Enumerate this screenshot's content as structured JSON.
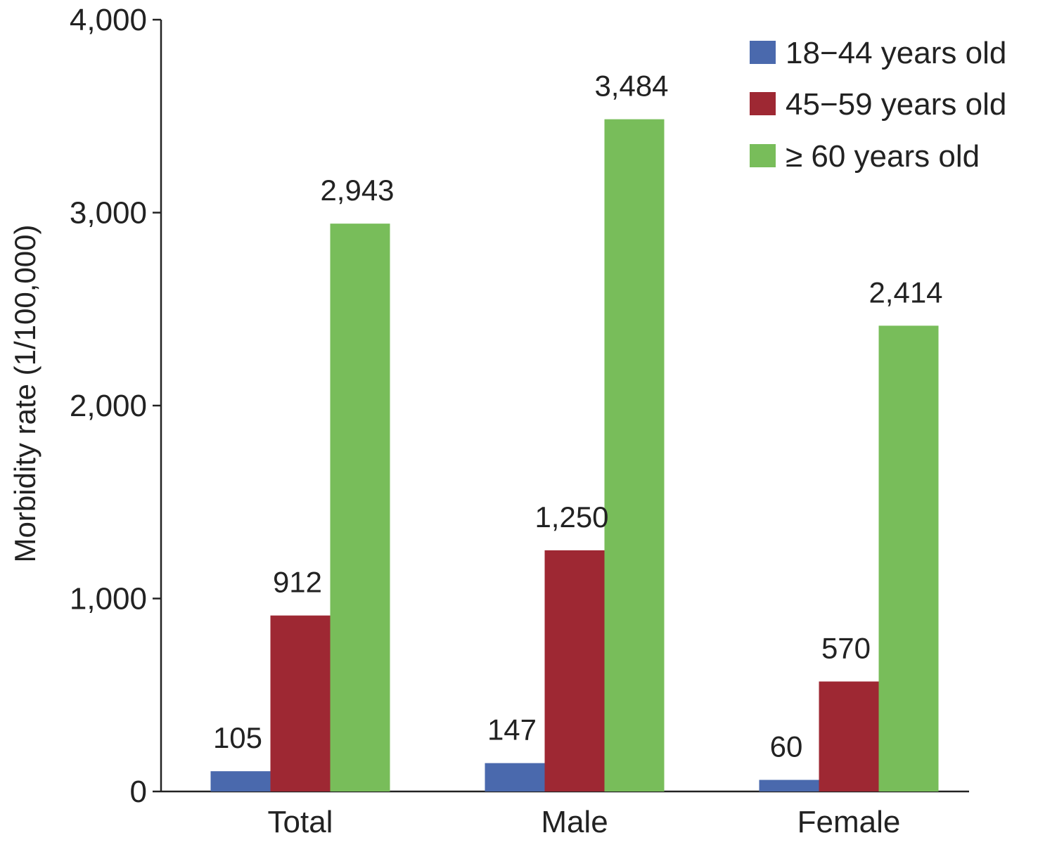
{
  "chart_data": {
    "type": "bar",
    "title": "",
    "xlabel": "",
    "ylabel": "Morbidity rate (1/100,000)",
    "ylim": [
      0,
      4000
    ],
    "yticks": [
      0,
      1000,
      2000,
      3000,
      4000
    ],
    "ytick_labels": [
      "0",
      "1,000",
      "2,000",
      "3,000",
      "4,000"
    ],
    "categories": [
      "Total",
      "Male",
      "Female"
    ],
    "series": [
      {
        "name": "18−44 years old",
        "color": "#4a69ad",
        "values": [
          105,
          147,
          60
        ],
        "labels": [
          "105",
          "147",
          "60"
        ]
      },
      {
        "name": "45−59 years old",
        "color": "#9e2833",
        "values": [
          912,
          1250,
          570
        ],
        "labels": [
          "912",
          "1,250",
          "570"
        ]
      },
      {
        "name": "≥ 60 years old",
        "color": "#78bd5a",
        "values": [
          2943,
          3484,
          2414
        ],
        "labels": [
          "2,943",
          "3,484",
          "2,414"
        ]
      }
    ],
    "legend_position": "top-right",
    "grid": false
  }
}
